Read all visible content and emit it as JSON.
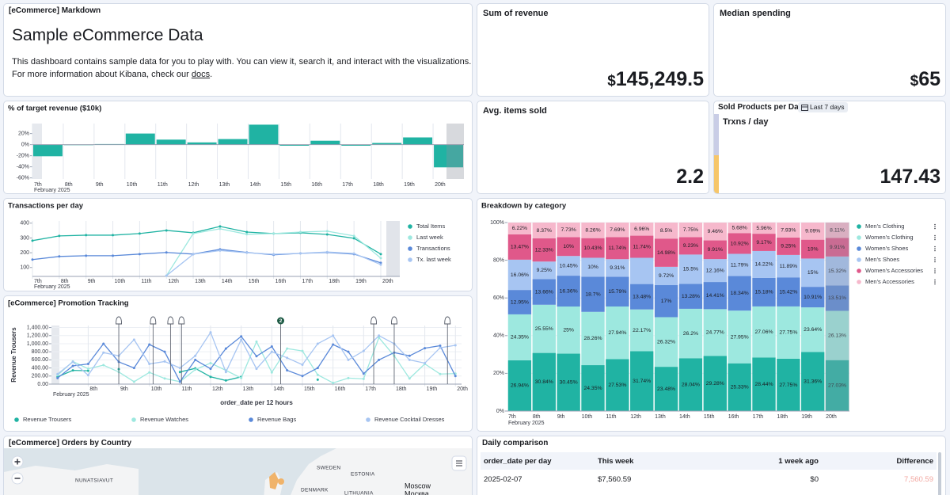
{
  "markdown": {
    "panel_title": "[eCommerce] Markdown",
    "heading": "Sample eCommerce Data",
    "line1": "This dashboard contains sample data for you to play with. You can view it, search it, and interact with the visualizations.",
    "line2": "For more information about Kibana, check our",
    "link": "docs",
    "end": "."
  },
  "metrics": [
    {
      "title": "Sum of revenue",
      "prefix": "$",
      "value": "145,249.5"
    },
    {
      "title": "Median spending",
      "prefix": "$",
      "value": "65"
    },
    {
      "title": "Avg. items sold",
      "value": "2.2"
    }
  ],
  "sold_products": {
    "title": "Sold Products per Day",
    "badge": "Last 7 days",
    "label": "Trxns / day",
    "value": "147.43"
  },
  "chart_data": [
    {
      "type": "bar",
      "title": "% of target revenue ($10k)",
      "categories": [
        "7th",
        "8th",
        "9th",
        "10th",
        "11th",
        "12th",
        "13th",
        "14th",
        "15th",
        "16th",
        "17th",
        "18th",
        "19th",
        "20th"
      ],
      "x_sublabel": "February 2025",
      "values": [
        -21,
        -1,
        1,
        20,
        9,
        4,
        10,
        36,
        -2,
        7,
        -2,
        3,
        13,
        -41
      ],
      "color": "#20b3a3",
      "ylim": [
        -62,
        38
      ],
      "yticks": [
        {
          "value": 20,
          "label": "20%"
        },
        {
          "value": 0,
          "label": "0%"
        },
        {
          "value": -20,
          "label": "-20%"
        },
        {
          "value": -40,
          "label": "-40%"
        },
        {
          "value": -60,
          "label": "-60%"
        }
      ]
    },
    {
      "type": "line",
      "title": "Transactions per day",
      "categories": [
        "7th",
        "8th",
        "9th",
        "10th",
        "11th",
        "12th",
        "13th",
        "14th",
        "15th",
        "16th",
        "17th",
        "18th",
        "19th",
        "20th"
      ],
      "x_sublabel": "February 2025",
      "series": [
        {
          "name": "Total Items",
          "color": "#20b3a3",
          "values": [
            282,
            314,
            319,
            319,
            330,
            351,
            335,
            378,
            340,
            330,
            335,
            324,
            298,
            191
          ]
        },
        {
          "name": "Last week",
          "color": "#9de8df",
          "values": [
            null,
            null,
            null,
            null,
            null,
            45,
            330,
            362,
            325,
            330,
            340,
            346,
            314,
            164
          ]
        },
        {
          "name": "Transactions",
          "color": "#5a89d9",
          "values": [
            154,
            175,
            180,
            180,
            191,
            202,
            191,
            223,
            202,
            186,
            196,
            202,
            191,
            132
          ]
        },
        {
          "name": "Tx. last week",
          "color": "#a7c5f2",
          "values": [
            null,
            null,
            null,
            null,
            null,
            45,
            190,
            215,
            200,
            190,
            196,
            205,
            195,
            120
          ]
        }
      ],
      "ylim": [
        40,
        415
      ],
      "yticks": [
        100,
        200,
        300,
        400
      ],
      "grid": false,
      "legend": "right"
    },
    {
      "type": "line",
      "title": "[eCommerce] Promotion Tracking",
      "x": [
        7,
        7.5,
        8,
        8.5,
        9,
        9.5,
        10,
        10.5,
        11,
        11.5,
        12,
        12.5,
        13,
        13.5,
        14,
        14.5,
        15,
        15.5,
        16,
        16.5,
        17,
        17.5,
        18,
        18.5,
        19,
        19.5,
        20
      ],
      "xlim": [
        6.8,
        20.2
      ],
      "xticks": [
        {
          "value": 8,
          "label": "8th"
        },
        {
          "value": 9,
          "label": "9th"
        },
        {
          "value": 10,
          "label": "10th"
        },
        {
          "value": 11,
          "label": "11th"
        },
        {
          "value": 12,
          "label": "12th"
        },
        {
          "value": 13,
          "label": "13th"
        },
        {
          "value": 14,
          "label": "14th"
        },
        {
          "value": 15,
          "label": "15th"
        },
        {
          "value": 16,
          "label": "16th"
        },
        {
          "value": 17,
          "label": "17th"
        },
        {
          "value": 18,
          "label": "18th"
        },
        {
          "value": 19,
          "label": "19th"
        },
        {
          "value": 20,
          "label": "20th"
        }
      ],
      "x_sublabel": "February 2025",
      "xlabel": "order_date per 12 hours",
      "ylabel": "Revenue Trousers",
      "series": [
        {
          "name": "Revenue Trousers",
          "color": "#20b3a3",
          "values": [
            180,
            340,
            330,
            null,
            370,
            null,
            null,
            null,
            300,
            390,
            180,
            90,
            180,
            null,
            null,
            null,
            null,
            110,
            null,
            null,
            null,
            null,
            null,
            null,
            null,
            null,
            null
          ]
        },
        {
          "name": "Revenue Watches",
          "color": "#9de8df",
          "values": [
            220,
            560,
            380,
            470,
            300,
            60,
            290,
            140,
            60,
            360,
            520,
            340,
            150,
            1050,
            290,
            880,
            820,
            230,
            30,
            150,
            130,
            1150,
            700,
            140,
            500,
            250,
            260
          ]
        },
        {
          "name": "Revenue Bags",
          "color": "#5a89d9",
          "values": [
            150,
            450,
            500,
            1000,
            550,
            400,
            980,
            800,
            60,
            600,
            380,
            880,
            1180,
            690,
            930,
            340,
            200,
            400,
            980,
            800,
            260,
            600,
            780,
            700,
            890,
            950,
            200
          ]
        },
        {
          "name": "Revenue Cocktail Dresses",
          "color": "#a7c5f2",
          "values": [
            250,
            550,
            220,
            780,
            700,
            1100,
            500,
            560,
            400,
            700,
            1280,
            300,
            1100,
            380,
            800,
            650,
            480,
            1000,
            1200,
            600,
            820,
            1200,
            1000,
            600,
            520,
            900,
            960
          ]
        }
      ],
      "annotations": [
        {
          "x": 9.0
        },
        {
          "x": 10.12
        },
        {
          "x": 10.69
        },
        {
          "x": 11.05
        },
        {
          "x": 14.29,
          "label": "2"
        },
        {
          "x": 17.33
        },
        {
          "x": 18.0
        },
        {
          "x": 19.74
        }
      ],
      "ylim": [
        0,
        1450
      ],
      "yticks": [
        {
          "value": 0,
          "label": "0.00"
        },
        {
          "value": 200,
          "label": "200.00"
        },
        {
          "value": 400,
          "label": "400.00"
        },
        {
          "value": 600,
          "label": "600.00"
        },
        {
          "value": 800,
          "label": "800.00"
        },
        {
          "value": 1000,
          "label": "1,000.00"
        },
        {
          "value": 1200,
          "label": "1,200.00"
        },
        {
          "value": 1400,
          "label": "1,400.00"
        }
      ],
      "grid": true,
      "legend": "bottom"
    },
    {
      "type": "stacked_bar",
      "title": "Breakdown by category",
      "categories": [
        "7th",
        "8th",
        "9th",
        "10th",
        "11th",
        "12th",
        "13th",
        "14th",
        "15th",
        "16th",
        "17th",
        "18th",
        "19th",
        "20th"
      ],
      "x_sublabel": "February 2025",
      "series": [
        {
          "name": "Men's Clothing",
          "color": "#20b3a3",
          "values": [
            26.94,
            30.84,
            30.45,
            24.35,
            27.53,
            31.74,
            23.48,
            28.04,
            29.28,
            25.33,
            28.44,
            27.75,
            31.36,
            27.03
          ],
          "value_labels": [
            "26.94%",
            "30.84%",
            "30.45%",
            "24.35%",
            "27.53%",
            "31.74%",
            "23.48%",
            "28.04%",
            "29.28%",
            "25.33%",
            "28.44%",
            "27.75%",
            "31.36%",
            "27.03%"
          ]
        },
        {
          "name": "Women's Clothing",
          "color": "#9de8df",
          "values": [
            24.35,
            25.55,
            25,
            28.26,
            27.94,
            22.17,
            26.32,
            26.2,
            24.77,
            27.95,
            27.06,
            27.75,
            23.64,
            26.13
          ],
          "value_labels": [
            "24.35%",
            "25.55%",
            "25%",
            "28.26%",
            "27.94%",
            "22.17%",
            "26.32%",
            "26.2%",
            "24.77%",
            "27.95%",
            "27.06%",
            "27.75%",
            "23.64%",
            "26.13%"
          ]
        },
        {
          "name": "Women's Shoes",
          "color": "#5a89d9",
          "values": [
            12.95,
            13.66,
            16.36,
            18.7,
            15.79,
            13.48,
            17,
            13.28,
            14.41,
            18.34,
            15.18,
            15.42,
            10.91,
            13.51
          ],
          "value_labels": [
            "12.95%",
            "13.66%",
            "16.36%",
            "18.7%",
            "15.79%",
            "13.48%",
            "17%",
            "13.28%",
            "14.41%",
            "18.34%",
            "15.18%",
            "15.42%",
            "10.91%",
            "13.51%"
          ]
        },
        {
          "name": "Men's Shoes",
          "color": "#a7c5f2",
          "values": [
            16.06,
            9.25,
            10.45,
            10,
            9.31,
            13.91,
            9.72,
            15.5,
            12.16,
            11.79,
            14.22,
            11.89,
            15,
            15.32
          ],
          "value_labels": [
            "16.06%",
            "9.25%",
            "10.45%",
            "10%",
            "9.31%",
            null,
            "9.72%",
            "15.5%",
            "12.16%",
            "11.79%",
            "14.22%",
            "11.89%",
            "15%",
            "15.32%"
          ]
        },
        {
          "name": "Women's Accessories",
          "color": "#e0588a",
          "values": [
            13.47,
            12.33,
            10,
            10.43,
            11.74,
            11.74,
            14.98,
            9.23,
            9.91,
            10.92,
            9.17,
            9.25,
            10,
            9.91
          ],
          "value_labels": [
            "13.47%",
            "12.33%",
            "10%",
            "10.43%",
            "11.74%",
            "11.74%",
            "14.98%",
            "9.23%",
            "9.91%",
            "10.92%",
            "9.17%",
            "9.25%",
            "10%",
            "9.91%"
          ]
        },
        {
          "name": "Men's Accessories",
          "color": "#f6b8cc",
          "values": [
            6.22,
            8.37,
            7.73,
            8.26,
            7.69,
            6.96,
            8.5,
            7.75,
            9.46,
            5.68,
            5.96,
            7.93,
            9.09,
            8.11
          ],
          "value_labels": [
            "6.22%",
            "8.37%",
            "7.73%",
            "8.26%",
            "7.69%",
            "6.96%",
            "8.5%",
            "7.75%",
            "9.46%",
            "5.68%",
            "5.96%",
            "7.93%",
            "9.09%",
            "8.11%"
          ]
        }
      ],
      "ylim": [
        0,
        100
      ],
      "yticks": [
        {
          "value": 0,
          "label": "0%"
        },
        {
          "value": 20,
          "label": "20%"
        },
        {
          "value": 40,
          "label": "40%"
        },
        {
          "value": 60,
          "label": "60%"
        },
        {
          "value": 80,
          "label": "80%"
        },
        {
          "value": 100,
          "label": "100%"
        }
      ],
      "grid": true,
      "legend": "right"
    }
  ],
  "map": {
    "title": "[eCommerce] Orders by Country",
    "labels": [
      "NUNATSIAVUT",
      "SWEDEN",
      "ESTONIA",
      "DENMARK",
      "LITHUANIA",
      "Moscow",
      "Москва"
    ]
  },
  "table": {
    "title": "Daily comparison",
    "columns": [
      "order_date per day",
      "This week",
      "1 week ago",
      "Difference"
    ],
    "rows": [
      [
        "2025-02-07",
        "$7,560.59",
        "$0",
        "7,560.59"
      ]
    ]
  }
}
